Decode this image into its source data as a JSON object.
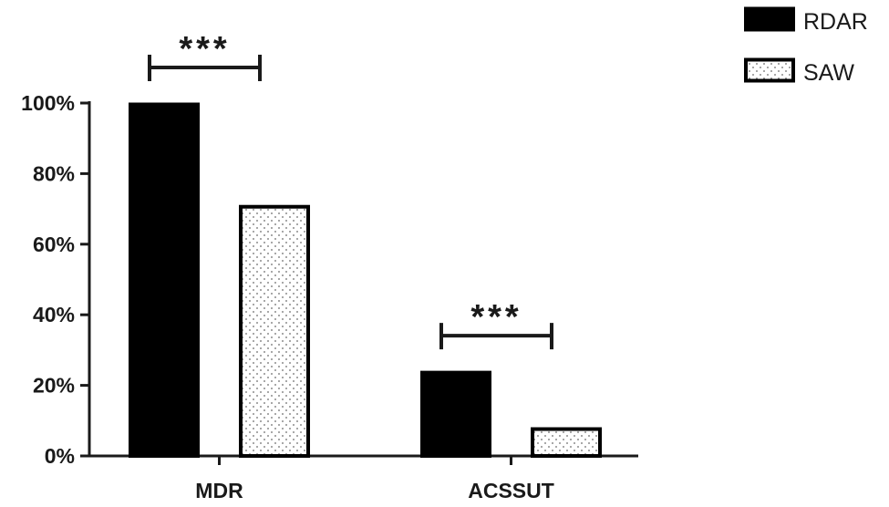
{
  "chart_data": {
    "type": "bar",
    "categories": [
      "MDR",
      "ACSSUT"
    ],
    "series": [
      {
        "name": "RDAR",
        "values": [
          100,
          24
        ],
        "pattern": "solid",
        "color": "#000000"
      },
      {
        "name": "SAW",
        "values": [
          71,
          8
        ],
        "pattern": "dotted",
        "color": "#ffffff"
      }
    ],
    "ylim": [
      0,
      100
    ],
    "yticks": [
      0,
      20,
      40,
      60,
      80,
      100
    ],
    "ytick_labels": [
      "0%",
      "20%",
      "40%",
      "60%",
      "80%",
      "100%"
    ],
    "xlabel": "",
    "ylabel": "",
    "title": "",
    "grid": false,
    "legend_position": "top-right",
    "significance": [
      {
        "category": "MDR",
        "label": "***"
      },
      {
        "category": "ACSSUT",
        "label": "***"
      }
    ]
  }
}
